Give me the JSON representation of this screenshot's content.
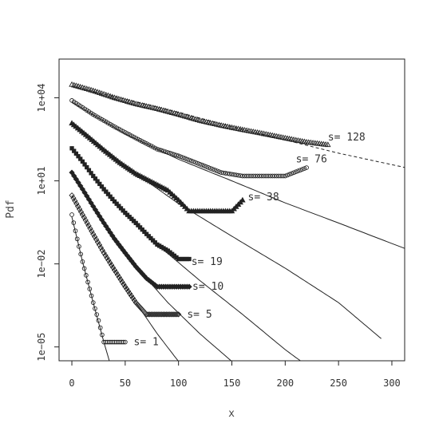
{
  "chart_data": {
    "type": "scatter",
    "xlabel": "x",
    "ylabel": "Pdf",
    "xlim": [
      -12,
      312
    ],
    "ylim_log10": [
      -5.5,
      5.4
    ],
    "y_log_scale": true,
    "grid": false,
    "x_ticks": [
      {
        "value": 0,
        "label": "0"
      },
      {
        "value": 50,
        "label": "50"
      },
      {
        "value": 100,
        "label": "100"
      },
      {
        "value": 150,
        "label": "150"
      },
      {
        "value": 200,
        "label": "200"
      },
      {
        "value": 250,
        "label": "250"
      },
      {
        "value": 300,
        "label": "300"
      }
    ],
    "y_ticks": [
      {
        "value": 1e-05,
        "label": "1e−05"
      },
      {
        "value": 0.01,
        "label": "1e−02"
      },
      {
        "value": 10,
        "label": "1e+01"
      },
      {
        "value": 10000,
        "label": "1e+04"
      }
    ],
    "series": [
      {
        "label": "s= 1",
        "marker": "circle",
        "fit": "solid",
        "points": [
          [
            0,
            0.6
          ],
          [
            5,
            0.08
          ],
          [
            10,
            0.012
          ],
          [
            15,
            0.0022
          ],
          [
            20,
            0.0004
          ],
          [
            25,
            9e-05
          ],
          [
            30,
            1.5e-05
          ],
          [
            35,
            1.5e-05
          ],
          [
            40,
            1.5e-05
          ],
          [
            45,
            1.5e-05
          ],
          [
            50,
            1.5e-05
          ]
        ],
        "curve": [
          [
            0,
            0.5
          ],
          [
            10,
            0.012
          ],
          [
            20,
            0.0004
          ],
          [
            30,
            1.5e-05
          ],
          [
            40,
            7e-07
          ]
        ],
        "label_at": [
          58,
          1.5e-05
        ]
      },
      {
        "label": "s= 5",
        "marker": "diamond",
        "fit": "solid",
        "points": [
          [
            0,
            3
          ],
          [
            10,
            0.6
          ],
          [
            20,
            0.12
          ],
          [
            30,
            0.025
          ],
          [
            40,
            0.006
          ],
          [
            50,
            0.0015
          ],
          [
            60,
            0.0004
          ],
          [
            70,
            0.00015
          ],
          [
            80,
            0.00015
          ],
          [
            90,
            0.00015
          ],
          [
            100,
            0.00015
          ]
        ],
        "curve": [
          [
            0,
            3
          ],
          [
            20,
            0.12
          ],
          [
            40,
            0.006
          ],
          [
            60,
            0.0004
          ],
          [
            80,
            3e-05
          ],
          [
            100,
            3e-06
          ],
          [
            125,
            3e-07
          ]
        ],
        "label_at": [
          108,
          0.00015
        ]
      },
      {
        "label": "s= 10",
        "marker": "filled-diamond",
        "fit": "solid",
        "points": [
          [
            0,
            20
          ],
          [
            10,
            5
          ],
          [
            20,
            1.2
          ],
          [
            30,
            0.3
          ],
          [
            40,
            0.08
          ],
          [
            50,
            0.025
          ],
          [
            60,
            0.008
          ],
          [
            70,
            0.003
          ],
          [
            80,
            0.0015
          ],
          [
            90,
            0.0015
          ],
          [
            100,
            0.0015
          ],
          [
            110,
            0.0015
          ]
        ],
        "curve": [
          [
            0,
            20
          ],
          [
            30,
            0.3
          ],
          [
            60,
            0.008
          ],
          [
            90,
            0.0004
          ],
          [
            120,
            3e-05
          ],
          [
            150,
            3e-06
          ],
          [
            175,
            4e-07
          ]
        ],
        "label_at": [
          113,
          0.0015
        ]
      },
      {
        "label": "s= 19",
        "marker": "filled-square",
        "fit": "solid",
        "points": [
          [
            0,
            150
          ],
          [
            10,
            50
          ],
          [
            20,
            15
          ],
          [
            30,
            5
          ],
          [
            40,
            1.8
          ],
          [
            50,
            0.7
          ],
          [
            60,
            0.3
          ],
          [
            70,
            0.12
          ],
          [
            80,
            0.05
          ],
          [
            90,
            0.03
          ],
          [
            100,
            0.015
          ],
          [
            110,
            0.015
          ]
        ],
        "curve": [
          [
            0,
            150
          ],
          [
            40,
            1.8
          ],
          [
            80,
            0.05
          ],
          [
            120,
            0.0025
          ],
          [
            160,
            0.00015
          ],
          [
            200,
            8e-06
          ],
          [
            215,
            3e-06
          ]
        ],
        "label_at": [
          112,
          0.012
        ]
      },
      {
        "label": "s= 38",
        "marker": "filled-triangle",
        "fit": "solid",
        "points": [
          [
            0,
            1200
          ],
          [
            15,
            400
          ],
          [
            30,
            130
          ],
          [
            45,
            45
          ],
          [
            60,
            18
          ],
          [
            75,
            9
          ],
          [
            90,
            4.5
          ],
          [
            100,
            2
          ],
          [
            110,
            0.8
          ],
          [
            120,
            0.8
          ],
          [
            130,
            0.8
          ],
          [
            140,
            0.8
          ],
          [
            150,
            0.8
          ],
          [
            160,
            2
          ]
        ],
        "curve": [
          [
            0,
            1200
          ],
          [
            50,
            35
          ],
          [
            100,
            1.5
          ],
          [
            150,
            0.1
          ],
          [
            200,
            0.007
          ],
          [
            250,
            0.0004
          ],
          [
            290,
            2e-05
          ]
        ],
        "label_at": [
          165,
          2.6
        ]
      },
      {
        "label": "s= 76",
        "marker": "circle",
        "fit": "solid",
        "points": [
          [
            0,
            8000
          ],
          [
            20,
            2500
          ],
          [
            40,
            900
          ],
          [
            60,
            350
          ],
          [
            80,
            140
          ],
          [
            100,
            80
          ],
          [
            120,
            40
          ],
          [
            140,
            20
          ],
          [
            160,
            15
          ],
          [
            180,
            15
          ],
          [
            200,
            15
          ],
          [
            220,
            30
          ]
        ],
        "curve": [
          [
            0,
            7000
          ],
          [
            50,
            500
          ],
          [
            100,
            60
          ],
          [
            150,
            10
          ],
          [
            200,
            1.6
          ],
          [
            250,
            0.3
          ],
          [
            313,
            0.035
          ]
        ],
        "label_at": [
          210,
          60
        ]
      },
      {
        "label": "s= 128",
        "marker": "triangle",
        "fit": "dashed",
        "points": [
          [
            0,
            30000
          ],
          [
            20,
            18000
          ],
          [
            40,
            10000
          ],
          [
            60,
            6000
          ],
          [
            80,
            4000
          ],
          [
            100,
            2500
          ],
          [
            120,
            1500
          ],
          [
            140,
            1000
          ],
          [
            160,
            700
          ],
          [
            180,
            500
          ],
          [
            200,
            350
          ],
          [
            220,
            250
          ],
          [
            240,
            200
          ]
        ],
        "curve": [
          [
            0,
            25000
          ],
          [
            50,
            9000
          ],
          [
            100,
            3000
          ],
          [
            150,
            900
          ],
          [
            200,
            300
          ],
          [
            250,
            100
          ],
          [
            313,
            30
          ]
        ],
        "label_at": [
          240,
          380
        ]
      }
    ]
  }
}
